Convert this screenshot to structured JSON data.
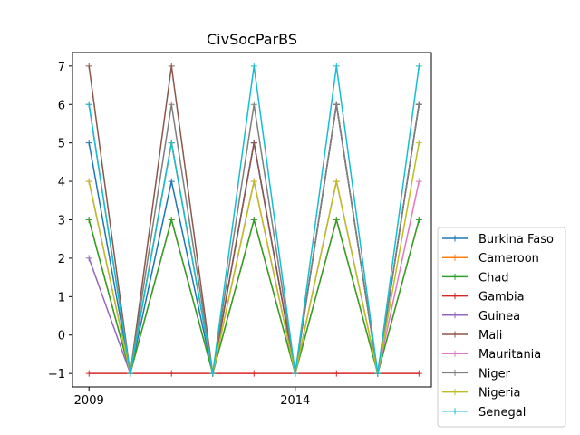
{
  "chart_data": {
    "type": "line",
    "title": "CivSocParBS",
    "xlabel": "",
    "ylabel": "",
    "x": [
      2009,
      2010,
      2011,
      2012,
      2013,
      2014,
      2015,
      2016,
      2017
    ],
    "xlim": [
      2008.6,
      2017.3
    ],
    "ylim": [
      -1.35,
      7.35
    ],
    "xticks": [
      2009,
      2014
    ],
    "xtick_labels": [
      "2009",
      "2014"
    ],
    "yticks": [
      -1,
      0,
      1,
      2,
      3,
      4,
      5,
      6,
      7
    ],
    "ytick_labels": [
      "−1",
      "0",
      "1",
      "2",
      "3",
      "4",
      "5",
      "6",
      "7"
    ],
    "grid": false,
    "legend_position": "outside-right-bottom",
    "series": [
      {
        "name": "Burkina Faso",
        "color": "#1f77b4",
        "values": [
          5,
          -1,
          4,
          -1,
          5,
          -1,
          6,
          -1,
          6
        ]
      },
      {
        "name": "Cameroon",
        "color": "#ff7f0e",
        "values": [
          3,
          -1,
          3,
          -1,
          3,
          -1,
          3,
          -1,
          3
        ]
      },
      {
        "name": "Chad",
        "color": "#2ca02c",
        "values": [
          3,
          -1,
          3,
          -1,
          3,
          -1,
          3,
          -1,
          3
        ]
      },
      {
        "name": "Gambia",
        "color": "#d62728",
        "values": [
          -1,
          -1,
          -1,
          -1,
          -1,
          -1,
          -1,
          -1,
          -1
        ]
      },
      {
        "name": "Guinea",
        "color": "#9467bd",
        "values": [
          2,
          -1,
          5,
          -1,
          5,
          -1,
          6,
          -1,
          6
        ]
      },
      {
        "name": "Mali",
        "color": "#8c564b",
        "values": [
          7,
          -1,
          7,
          -1,
          5,
          -1,
          6,
          -1,
          6
        ]
      },
      {
        "name": "Mauritania",
        "color": "#e377c2",
        "values": [
          4,
          -1,
          5,
          -1,
          4,
          -1,
          4,
          -1,
          4
        ]
      },
      {
        "name": "Niger",
        "color": "#7f7f7f",
        "values": [
          6,
          -1,
          6,
          -1,
          6,
          -1,
          6,
          -1,
          6
        ]
      },
      {
        "name": "Nigeria",
        "color": "#bcbd22",
        "values": [
          4,
          -1,
          5,
          -1,
          4,
          -1,
          4,
          -1,
          5
        ]
      },
      {
        "name": "Senegal",
        "color": "#17becf",
        "values": [
          6,
          -1,
          5,
          -1,
          7,
          -1,
          7,
          -1,
          7
        ]
      }
    ]
  }
}
